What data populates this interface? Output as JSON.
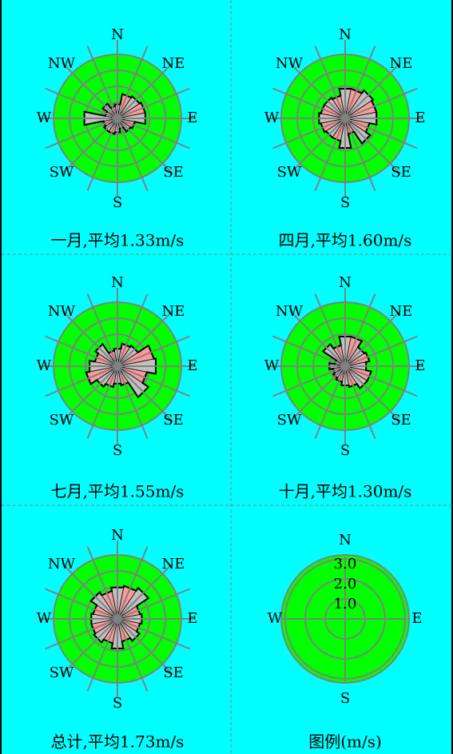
{
  "colors": {
    "background": "#00FFFF",
    "disc": "#00FF00",
    "grid": "#808080",
    "petal_light": "#C0C0C0",
    "petal_pink": "#FF9999",
    "outline": "#000000"
  },
  "direction_labels": [
    "N",
    "NE",
    "E",
    "SE",
    "S",
    "SW",
    "W",
    "NW"
  ],
  "chart_data": [
    {
      "type": "wind-rose",
      "caption": "一月,平均1.33m/s",
      "directions": [
        "N",
        "NNE",
        "NE",
        "ENE",
        "E",
        "ESE",
        "SE",
        "SSE",
        "S",
        "SSW",
        "SW",
        "WSW",
        "W",
        "WNW",
        "NW",
        "NNW"
      ],
      "values": [
        0.8,
        1.4,
        1.5,
        1.6,
        1.6,
        1.0,
        0.9,
        0.6,
        0.8,
        0.9,
        0.9,
        0.8,
        1.9,
        0.7,
        1.0,
        0.7
      ],
      "unit": "m/s",
      "rlim": [
        0,
        3.6
      ]
    },
    {
      "type": "wind-rose",
      "caption": "四月,平均1.60m/s",
      "directions": [
        "N",
        "NNE",
        "NE",
        "ENE",
        "E",
        "ESE",
        "SE",
        "SSE",
        "S",
        "SSW",
        "SW",
        "WSW",
        "W",
        "WNW",
        "NW",
        "NNW"
      ],
      "values": [
        1.7,
        1.7,
        1.9,
        1.8,
        1.8,
        1.4,
        1.7,
        0.9,
        1.7,
        1.3,
        1.3,
        1.4,
        1.5,
        1.4,
        1.4,
        1.3
      ],
      "unit": "m/s",
      "rlim": [
        0,
        3.6
      ]
    },
    {
      "type": "wind-rose",
      "caption": "七月,平均1.55m/s",
      "directions": [
        "N",
        "NNE",
        "NE",
        "ENE",
        "E",
        "ESE",
        "SE",
        "SSE",
        "S",
        "SSW",
        "SW",
        "WSW",
        "W",
        "WNW",
        "NW",
        "NNW"
      ],
      "values": [
        1.0,
        1.3,
        1.4,
        2.1,
        2.2,
        1.7,
        2.1,
        1.1,
        1.0,
        1.2,
        1.4,
        1.8,
        1.6,
        1.3,
        1.5,
        0.9
      ],
      "unit": "m/s",
      "rlim": [
        0,
        3.6
      ]
    },
    {
      "type": "wind-rose",
      "caption": "十月,平均1.30m/s",
      "directions": [
        "N",
        "NNE",
        "NE",
        "ENE",
        "E",
        "ESE",
        "SE",
        "SSE",
        "S",
        "SSW",
        "SW",
        "WSW",
        "W",
        "WNW",
        "NW",
        "NNW"
      ],
      "values": [
        1.7,
        1.7,
        1.3,
        1.4,
        1.2,
        1.5,
        1.5,
        1.2,
        1.1,
        0.9,
        0.8,
        0.7,
        0.9,
        0.6,
        1.5,
        1.2
      ],
      "unit": "m/s",
      "rlim": [
        0,
        3.6
      ]
    },
    {
      "type": "wind-rose",
      "caption": "总计,平均1.73m/s",
      "directions": [
        "N",
        "NNE",
        "NE",
        "ENE",
        "E",
        "ESE",
        "SE",
        "SSE",
        "S",
        "SSW",
        "SW",
        "WSW",
        "W",
        "WNW",
        "NW",
        "NNW"
      ],
      "values": [
        1.8,
        1.9,
        2.1,
        1.3,
        1.4,
        1.3,
        1.5,
        1.3,
        1.7,
        1.4,
        1.6,
        1.5,
        1.5,
        1.4,
        1.8,
        1.6
      ],
      "unit": "m/s",
      "rlim": [
        0,
        3.6
      ]
    }
  ],
  "legend": {
    "caption": "图例(m/s)",
    "ring_labels": [
      "3.0",
      "2.0",
      "1.0"
    ],
    "ring_values": [
      3.0,
      2.0,
      1.0
    ],
    "labels": [
      "N",
      "E",
      "S",
      "W"
    ]
  }
}
